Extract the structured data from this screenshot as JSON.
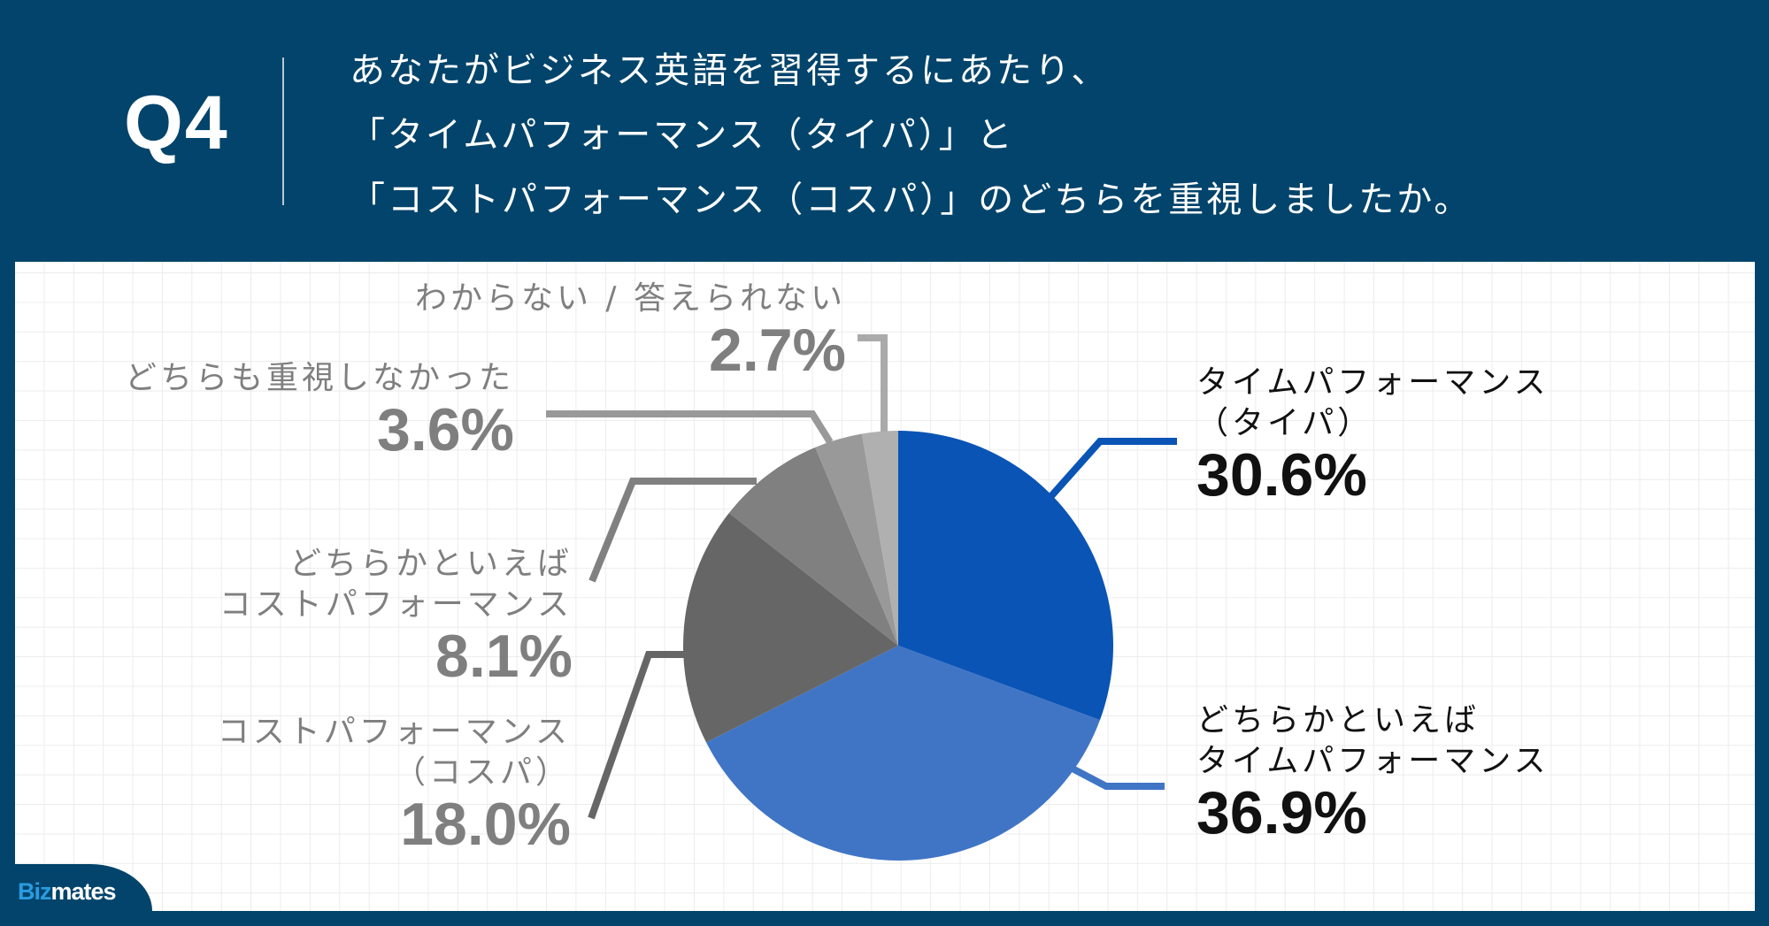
{
  "header": {
    "question_number": "Q4",
    "title_lines": [
      "あなたがビジネス英語を習得するにあたり、",
      "「タイムパフォーマンス（タイパ）」と",
      "「コストパフォーマンス（コスパ）」のどちらを重視しましたか。"
    ]
  },
  "logo": {
    "part1": "Biz",
    "part2": "mates"
  },
  "colors": {
    "background": "#02446b",
    "panel": "#ffffff",
    "grid": "#ececec",
    "logo_accent": "#2a9be0"
  },
  "labels": {
    "timepa": {
      "line1": "タイムパフォーマンス",
      "line2": "（タイパ）",
      "pct": "30.6%"
    },
    "lean_timepa": {
      "line1": "どちらかといえば",
      "line2": "タイムパフォーマンス",
      "pct": "36.9%"
    },
    "cospa": {
      "line1": "コストパフォーマンス",
      "line2": "（コスパ）",
      "pct": "18.0%"
    },
    "lean_cospa": {
      "line1": "どちらかといえば",
      "line2": "コストパフォーマンス",
      "pct": "8.1%"
    },
    "neither": {
      "line1": "どちらも重視しなかった",
      "pct": "3.6%"
    },
    "unknown": {
      "line1": "わからない / 答えられない",
      "pct": "2.7%"
    }
  },
  "chart_data": {
    "type": "pie",
    "title": "あなたがビジネス英語を習得するにあたり、「タイムパフォーマンス（タイパ）」と「コストパフォーマンス（コスパ）」のどちらを重視しましたか。",
    "start_angle": "12 o'clock, clockwise",
    "categories": [
      "タイムパフォーマンス（タイパ）",
      "どちらかといえばタイムパフォーマンス",
      "コストパフォーマンス（コスパ）",
      "どちらかといえばコストパフォーマンス",
      "どちらも重視しなかった",
      "わからない / 答えられない"
    ],
    "values": [
      30.6,
      36.9,
      18.0,
      8.1,
      3.6,
      2.7
    ],
    "unit": "%",
    "colors": [
      "#0a54b5",
      "#4075c5",
      "#666666",
      "#808080",
      "#999999",
      "#b0b0b0"
    ],
    "legend": "none (leader-line labels)"
  }
}
